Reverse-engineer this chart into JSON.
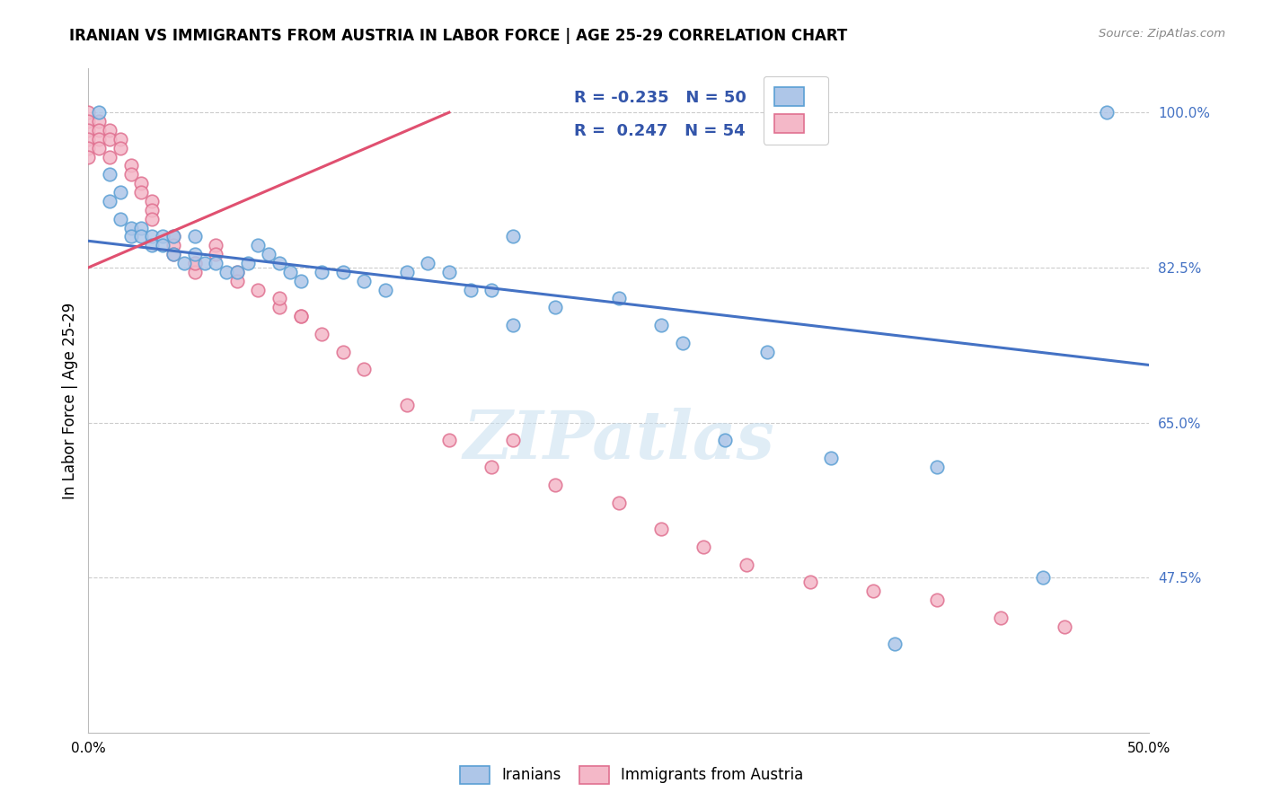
{
  "title": "IRANIAN VS IMMIGRANTS FROM AUSTRIA IN LABOR FORCE | AGE 25-29 CORRELATION CHART",
  "source": "Source: ZipAtlas.com",
  "ylabel": "In Labor Force | Age 25-29",
  "watermark": "ZIPatlas",
  "xmin": 0.0,
  "xmax": 0.5,
  "ymin": 0.3,
  "ymax": 1.05,
  "yticks": [
    0.475,
    0.65,
    0.825,
    1.0
  ],
  "ytick_labels": [
    "47.5%",
    "65.0%",
    "82.5%",
    "100.0%"
  ],
  "xticks": [
    0.0,
    0.1,
    0.2,
    0.3,
    0.4,
    0.5
  ],
  "xtick_labels": [
    "0.0%",
    "",
    "",
    "",
    "",
    "50.0%"
  ],
  "iranians_color": "#aec6e8",
  "austria_color": "#f4b8c8",
  "iranians_edge": "#5a9fd4",
  "austria_edge": "#e07090",
  "trend_blue": "#4472c4",
  "trend_pink": "#e05070",
  "R_blue": -0.235,
  "N_blue": 50,
  "R_pink": 0.247,
  "N_pink": 54,
  "legend_color": "#3355aa",
  "iranians_x": [
    0.005,
    0.01,
    0.01,
    0.015,
    0.015,
    0.02,
    0.02,
    0.025,
    0.025,
    0.03,
    0.03,
    0.035,
    0.035,
    0.04,
    0.04,
    0.045,
    0.05,
    0.05,
    0.055,
    0.06,
    0.065,
    0.07,
    0.075,
    0.08,
    0.085,
    0.09,
    0.095,
    0.1,
    0.11,
    0.12,
    0.13,
    0.14,
    0.15,
    0.16,
    0.17,
    0.18,
    0.19,
    0.2,
    0.22,
    0.25,
    0.27,
    0.3,
    0.35,
    0.4,
    0.45,
    0.48,
    0.2,
    0.28,
    0.32,
    0.38
  ],
  "iranians_y": [
    1.0,
    0.93,
    0.9,
    0.91,
    0.88,
    0.87,
    0.86,
    0.87,
    0.86,
    0.86,
    0.85,
    0.86,
    0.85,
    0.86,
    0.84,
    0.83,
    0.86,
    0.84,
    0.83,
    0.83,
    0.82,
    0.82,
    0.83,
    0.85,
    0.84,
    0.83,
    0.82,
    0.81,
    0.82,
    0.82,
    0.81,
    0.8,
    0.82,
    0.83,
    0.82,
    0.8,
    0.8,
    0.86,
    0.78,
    0.79,
    0.76,
    0.63,
    0.61,
    0.6,
    0.475,
    1.0,
    0.76,
    0.74,
    0.73,
    0.4
  ],
  "austria_x": [
    0.0,
    0.0,
    0.0,
    0.0,
    0.0,
    0.0,
    0.005,
    0.005,
    0.005,
    0.005,
    0.01,
    0.01,
    0.01,
    0.015,
    0.015,
    0.02,
    0.02,
    0.025,
    0.025,
    0.03,
    0.03,
    0.03,
    0.04,
    0.04,
    0.04,
    0.05,
    0.05,
    0.06,
    0.06,
    0.07,
    0.08,
    0.09,
    0.1,
    0.05,
    0.07,
    0.09,
    0.1,
    0.11,
    0.12,
    0.13,
    0.15,
    0.17,
    0.19,
    0.2,
    0.22,
    0.25,
    0.27,
    0.29,
    0.31,
    0.34,
    0.37,
    0.4,
    0.43,
    0.46
  ],
  "austria_y": [
    1.0,
    0.99,
    0.98,
    0.97,
    0.96,
    0.95,
    0.99,
    0.98,
    0.97,
    0.96,
    0.98,
    0.97,
    0.95,
    0.97,
    0.96,
    0.94,
    0.93,
    0.92,
    0.91,
    0.9,
    0.89,
    0.88,
    0.86,
    0.85,
    0.84,
    0.83,
    0.82,
    0.85,
    0.84,
    0.82,
    0.8,
    0.78,
    0.77,
    0.83,
    0.81,
    0.79,
    0.77,
    0.75,
    0.73,
    0.71,
    0.67,
    0.63,
    0.6,
    0.63,
    0.58,
    0.56,
    0.53,
    0.51,
    0.49,
    0.47,
    0.46,
    0.45,
    0.43,
    0.42
  ],
  "blue_trend_x0": 0.0,
  "blue_trend_y0": 0.855,
  "blue_trend_x1": 0.5,
  "blue_trend_y1": 0.715,
  "pink_trend_x0": 0.0,
  "pink_trend_y0": 0.825,
  "pink_trend_x1": 0.17,
  "pink_trend_y1": 1.0
}
